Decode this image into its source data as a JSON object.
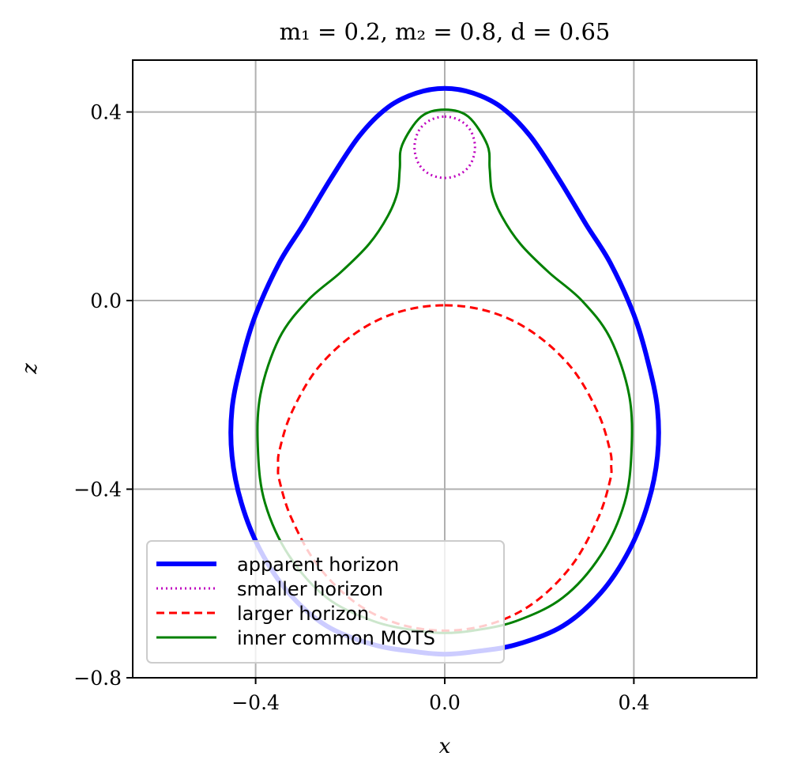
{
  "chart_data": {
    "type": "line",
    "title": "m₁ = 0.2, m₂ = 0.8, d = 0.65",
    "xlabel": "x",
    "ylabel": "z",
    "xlim": [
      -0.66,
      0.66
    ],
    "ylim": [
      -0.8,
      0.51
    ],
    "xticks": [
      -0.4,
      0.0,
      0.4
    ],
    "yticks": [
      -0.8,
      -0.4,
      0.0,
      0.4
    ],
    "xtick_labels": [
      "−0.4",
      "0.0",
      "0.4"
    ],
    "ytick_labels": [
      "−0.8",
      "−0.4",
      "0.0",
      "0.4"
    ],
    "grid": true,
    "legend_position": "lower-left",
    "series": [
      {
        "name": "apparent horizon",
        "color": "#0000ff",
        "style": "solid",
        "x": [
          0.0,
          0.06,
          0.12,
          0.18,
          0.24,
          0.3,
          0.35,
          0.4,
          0.43,
          0.45,
          0.45,
          0.43,
          0.39,
          0.33,
          0.25,
          0.15,
          0.06,
          0.0,
          -0.06,
          -0.15,
          -0.25,
          -0.33,
          -0.39,
          -0.43,
          -0.45,
          -0.45,
          -0.43,
          -0.4,
          -0.35,
          -0.3,
          -0.24,
          -0.18,
          -0.12,
          -0.06,
          0.0
        ],
        "y": [
          0.45,
          0.44,
          0.41,
          0.35,
          0.26,
          0.16,
          0.08,
          -0.03,
          -0.13,
          -0.23,
          -0.33,
          -0.43,
          -0.53,
          -0.62,
          -0.69,
          -0.73,
          -0.745,
          -0.75,
          -0.745,
          -0.73,
          -0.69,
          -0.62,
          -0.53,
          -0.43,
          -0.33,
          -0.23,
          -0.13,
          -0.03,
          0.08,
          0.16,
          0.26,
          0.35,
          0.41,
          0.44,
          0.45
        ]
      },
      {
        "name": "smaller horizon",
        "color": "#bf00bf",
        "style": "dotted",
        "x": [
          0.0,
          0.032,
          0.055,
          0.064,
          0.055,
          0.032,
          0.0,
          -0.032,
          -0.055,
          -0.064,
          -0.055,
          -0.032,
          0.0
        ],
        "y": [
          0.39,
          0.382,
          0.36,
          0.325,
          0.29,
          0.268,
          0.26,
          0.268,
          0.29,
          0.325,
          0.36,
          0.382,
          0.39
        ]
      },
      {
        "name": "larger horizon",
        "color": "#ff0000",
        "style": "dashed",
        "x": [
          0.0,
          0.1,
          0.19,
          0.27,
          0.325,
          0.35,
          0.352,
          0.35,
          0.325,
          0.27,
          0.19,
          0.1,
          0.0,
          -0.1,
          -0.19,
          -0.27,
          -0.325,
          -0.35,
          -0.352,
          -0.35,
          -0.325,
          -0.27,
          -0.19,
          -0.1,
          0.0
        ],
        "y": [
          -0.01,
          -0.025,
          -0.07,
          -0.145,
          -0.24,
          -0.32,
          -0.35,
          -0.38,
          -0.46,
          -0.56,
          -0.64,
          -0.685,
          -0.7,
          -0.685,
          -0.64,
          -0.56,
          -0.46,
          -0.38,
          -0.35,
          -0.32,
          -0.24,
          -0.145,
          -0.07,
          -0.025,
          -0.01
        ]
      },
      {
        "name": "inner common MOTS",
        "color": "#008000",
        "style": "solid",
        "x": [
          0.0,
          0.05,
          0.09,
          0.095,
          0.1,
          0.12,
          0.16,
          0.22,
          0.29,
          0.35,
          0.39,
          0.395,
          0.38,
          0.33,
          0.25,
          0.15,
          0.06,
          0.0,
          -0.06,
          -0.15,
          -0.25,
          -0.33,
          -0.38,
          -0.395,
          -0.39,
          -0.35,
          -0.29,
          -0.22,
          -0.16,
          -0.12,
          -0.1,
          -0.095,
          -0.09,
          -0.05,
          0.0
        ],
        "y": [
          0.405,
          0.39,
          0.33,
          0.28,
          0.23,
          0.18,
          0.12,
          0.06,
          0.0,
          -0.08,
          -0.2,
          -0.32,
          -0.43,
          -0.54,
          -0.63,
          -0.68,
          -0.7,
          -0.705,
          -0.7,
          -0.68,
          -0.63,
          -0.54,
          -0.43,
          -0.32,
          -0.2,
          -0.08,
          0.0,
          0.06,
          0.12,
          0.18,
          0.23,
          0.28,
          0.33,
          0.39,
          0.405
        ]
      }
    ]
  }
}
